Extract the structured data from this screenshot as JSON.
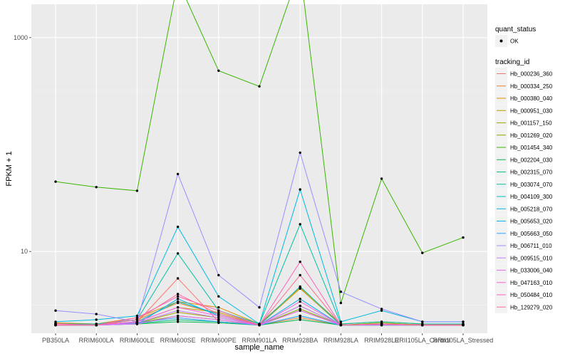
{
  "chart_data": {
    "type": "line",
    "title": "",
    "xlabel": "sample_name",
    "ylabel": "FPKM + 1",
    "y_scale": "log10",
    "ylim": [
      1.72,
      2050
    ],
    "y_ticks": [
      10,
      1000
    ],
    "y_tick_labels": [
      "10",
      "1000"
    ],
    "grid": true,
    "categories": [
      "PB350LA",
      "RRIM600LA",
      "RRIM600LE",
      "RRIM600SE",
      "RRIM600PE",
      "RRIM901LA",
      "RRIM928BA",
      "RRIM928LA",
      "RRIM928LE",
      "RRII105LA_Control",
      "RRII105LA_Stressed"
    ],
    "legend": {
      "position": "right",
      "shape_title": "quant_status",
      "shape_entries": [
        "OK"
      ],
      "color_title": "tracking_id"
    },
    "series": [
      {
        "name": "Hb_000236_360",
        "color": "#F8766D",
        "values": [
          2.12,
          2.08,
          2.18,
          5.6,
          2.2,
          2.08,
          2.8,
          2.06,
          2.1,
          2.08,
          2.08
        ]
      },
      {
        "name": "Hb_000334_250",
        "color": "#EA8331",
        "values": [
          2.05,
          2.05,
          2.3,
          3.3,
          2.6,
          2.05,
          2.4,
          2.05,
          2.1,
          2.05,
          2.05
        ]
      },
      {
        "name": "Hb_000380_040",
        "color": "#D89000",
        "values": [
          2.15,
          2.1,
          2.4,
          3.4,
          3.0,
          2.1,
          4.6,
          2.1,
          2.2,
          2.1,
          2.1
        ]
      },
      {
        "name": "Hb_000951_030",
        "color": "#C09B00",
        "values": [
          2.05,
          2.05,
          2.2,
          3.0,
          2.7,
          2.05,
          4.5,
          2.05,
          2.1,
          2.05,
          2.05
        ]
      },
      {
        "name": "Hb_001157_150",
        "color": "#A3A500",
        "values": [
          2.05,
          2.05,
          2.15,
          2.7,
          2.4,
          2.05,
          3.1,
          2.05,
          2.05,
          2.05,
          2.05
        ]
      },
      {
        "name": "Hb_001269_020",
        "color": "#7CAE00",
        "values": [
          2.05,
          2.05,
          2.15,
          2.5,
          2.3,
          2.05,
          2.9,
          2.05,
          2.15,
          2.05,
          2.05
        ]
      },
      {
        "name": "Hb_001454_340",
        "color": "#39B600",
        "values": [
          45,
          40,
          37,
          3400,
          490,
          350,
          4400,
          3.3,
          48,
          9.7,
          13.5
        ]
      },
      {
        "name": "Hb_002204_030",
        "color": "#00BB4E",
        "values": [
          2.05,
          2.05,
          2.1,
          2.2,
          2.15,
          2.05,
          2.3,
          2.05,
          2.05,
          2.05,
          2.05
        ]
      },
      {
        "name": "Hb_002315_070",
        "color": "#00BF7D",
        "values": [
          2.05,
          2.05,
          2.12,
          2.3,
          2.2,
          2.05,
          2.5,
          2.05,
          2.05,
          2.05,
          2.05
        ]
      },
      {
        "name": "Hb_003074_070",
        "color": "#00C1A3",
        "values": [
          2.1,
          2.1,
          2.3,
          9.6,
          2.8,
          2.1,
          18,
          2.1,
          2.2,
          2.1,
          2.1
        ]
      },
      {
        "name": "Hb_004109_300",
        "color": "#00BFC4",
        "values": [
          2.05,
          2.05,
          2.2,
          3.4,
          2.6,
          2.05,
          4.7,
          2.05,
          2.1,
          2.05,
          2.05
        ]
      },
      {
        "name": "Hb_005218_070",
        "color": "#00BAE0",
        "values": [
          2.2,
          2.3,
          2.5,
          17,
          3.8,
          2.1,
          38,
          2.2,
          2.8,
          2.2,
          2.2
        ]
      },
      {
        "name": "Hb_005653_020",
        "color": "#00B0F6",
        "values": [
          2.05,
          2.05,
          2.1,
          3.6,
          2.5,
          2.05,
          3.6,
          2.05,
          2.1,
          2.05,
          2.05
        ]
      },
      {
        "name": "Hb_005663_050",
        "color": "#35A2FF",
        "values": [
          2.05,
          2.05,
          2.15,
          2.4,
          2.2,
          2.05,
          2.5,
          2.05,
          2.05,
          2.05,
          2.05
        ]
      },
      {
        "name": "Hb_006711_010",
        "color": "#9590FF",
        "values": [
          2.8,
          2.6,
          2.2,
          53,
          6.0,
          3.0,
          84,
          4.2,
          2.9,
          2.2,
          2.2
        ]
      },
      {
        "name": "Hb_009515_010",
        "color": "#C77CFF",
        "values": [
          2.05,
          2.05,
          2.15,
          2.8,
          2.4,
          2.05,
          3.1,
          2.05,
          2.1,
          2.05,
          2.05
        ]
      },
      {
        "name": "Hb_033006_040",
        "color": "#E76BF3",
        "values": [
          2.05,
          2.05,
          2.1,
          2.5,
          2.3,
          2.05,
          2.8,
          2.05,
          2.05,
          2.05,
          2.05
        ]
      },
      {
        "name": "Hb_047163_010",
        "color": "#FA62DB",
        "values": [
          2.05,
          2.05,
          2.2,
          3.0,
          2.5,
          2.05,
          3.4,
          2.05,
          2.1,
          2.05,
          2.05
        ]
      },
      {
        "name": "Hb_050484_010",
        "color": "#FF62BC",
        "values": [
          2.1,
          2.05,
          2.4,
          3.8,
          2.8,
          2.05,
          8.0,
          2.05,
          2.1,
          2.05,
          2.05
        ]
      },
      {
        "name": "Hb_129279_020",
        "color": "#FF6C91",
        "values": [
          2.05,
          2.05,
          2.3,
          4.0,
          2.6,
          2.05,
          6.0,
          2.05,
          2.1,
          2.05,
          2.05
        ]
      }
    ]
  }
}
